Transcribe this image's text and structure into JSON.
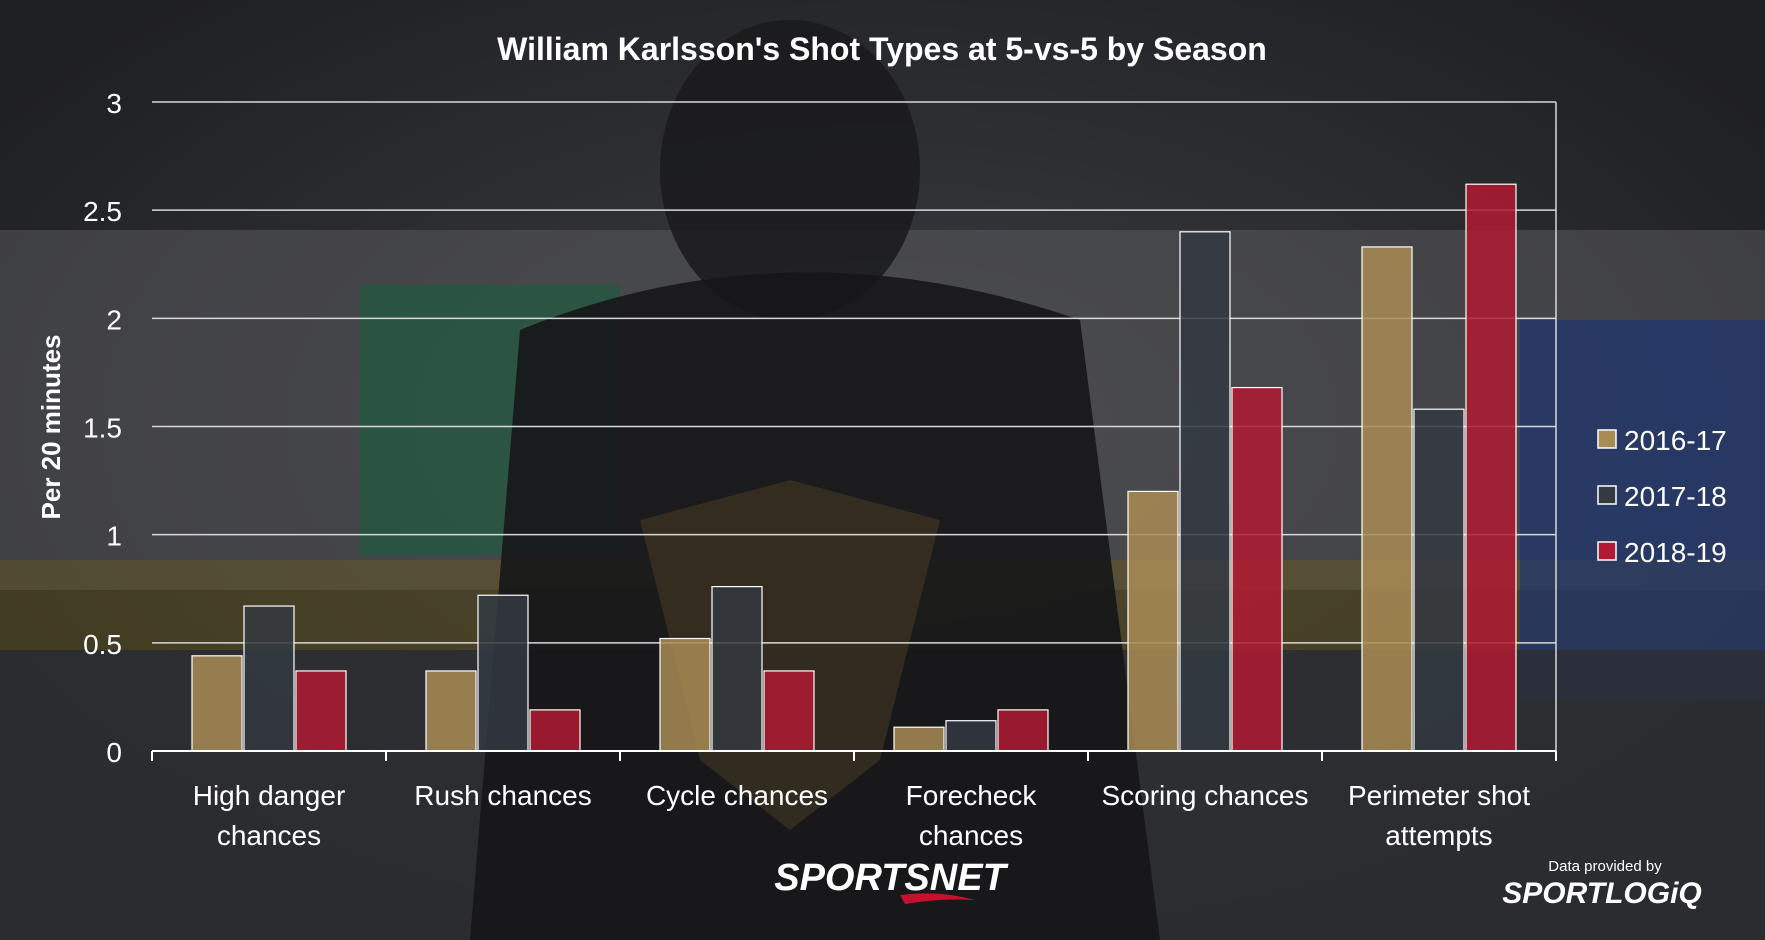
{
  "chart_data": {
    "type": "bar",
    "title": "William Karlsson's Shot Types at 5-vs-5 by Season",
    "ylabel": "Per 20 minutes",
    "xlabel": "",
    "ylim": [
      0,
      3
    ],
    "yticks": [
      0,
      0.5,
      1,
      1.5,
      2,
      2.5,
      3
    ],
    "ytick_labels": [
      "0",
      "0.5",
      "1",
      "1.5",
      "2",
      "2.5",
      "3"
    ],
    "grid": true,
    "legend_position": "right",
    "categories": [
      [
        "High danger",
        "chances"
      ],
      [
        "Rush chances"
      ],
      [
        "Cycle chances"
      ],
      [
        "Forecheck",
        "chances"
      ],
      [
        "Scoring chances"
      ],
      [
        "Perimeter shot",
        "attempts"
      ]
    ],
    "series": [
      {
        "name": "2016-17",
        "color": "#a98c55",
        "values": [
          0.44,
          0.37,
          0.52,
          0.11,
          1.2,
          2.33
        ]
      },
      {
        "name": "2017-18",
        "color": "#343a42",
        "values": [
          0.67,
          0.72,
          0.76,
          0.14,
          2.4,
          1.58
        ]
      },
      {
        "name": "2018-19",
        "color": "#b01a32",
        "values": [
          0.37,
          0.19,
          0.37,
          0.19,
          1.68,
          2.62
        ]
      }
    ]
  },
  "branding": {
    "sportsnet": "SPORTSNET",
    "data_credit": "Data provided by",
    "sportlogiq": "SPORTLOGiQ"
  }
}
